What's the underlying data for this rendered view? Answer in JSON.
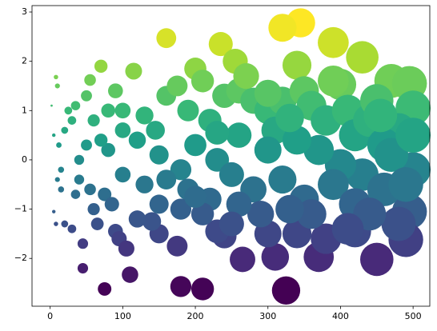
{
  "chart_data": {
    "type": "scatter",
    "colormap": "viridis",
    "color_by": "y",
    "size_by": "x",
    "x": [
      325,
      345,
      320,
      390,
      430,
      160,
      235,
      180,
      210,
      75,
      110,
      450,
      265,
      310,
      370,
      175,
      45,
      5,
      2,
      8,
      10,
      55,
      70,
      115,
      200,
      255,
      340,
      400,
      470,
      495,
      500,
      480,
      500,
      495,
      490,
      420,
      380,
      340,
      300,
      240,
      230,
      150,
      140,
      120,
      90,
      95,
      105,
      60,
      55,
      40,
      35,
      30,
      20,
      15,
      15,
      12,
      20,
      30,
      25,
      35,
      80,
      90,
      100,
      130,
      160,
      190,
      210,
      220,
      240,
      260,
      280,
      300,
      310,
      320,
      350,
      360,
      380,
      410,
      420,
      440,
      460,
      450,
      470,
      430,
      400,
      370,
      340,
      300,
      260,
      230,
      200,
      180,
      150,
      120,
      100,
      80,
      70,
      60,
      50,
      40,
      130,
      160,
      190,
      220,
      250,
      280,
      320,
      350,
      390,
      420,
      460,
      480,
      440,
      410,
      360,
      330,
      290,
      260,
      210,
      180,
      100,
      75,
      65,
      85,
      200,
      270,
      300,
      175,
      145,
      230,
      330,
      390,
      455,
      500,
      490,
      250,
      150,
      50,
      10,
      5,
      8,
      45
    ],
    "y": [
      -2.65,
      2.78,
      2.68,
      2.38,
      2.08,
      2.47,
      2.35,
      -2.57,
      -2.62,
      -2.62,
      -2.33,
      -2.02,
      -2.02,
      -1.97,
      -1.97,
      -1.75,
      -2.2,
      -1.05,
      1.1,
      1.68,
      1.5,
      1.62,
      1.9,
      1.8,
      1.85,
      2.0,
      1.92,
      1.53,
      1.6,
      1.55,
      1.05,
      0.6,
      -0.2,
      -1.05,
      -1.62,
      -1.45,
      -1.6,
      -1.5,
      -1.5,
      -1.55,
      -1.45,
      -1.5,
      -1.25,
      -1.2,
      -1.45,
      -1.6,
      -1.8,
      -1.0,
      -0.6,
      -0.4,
      -0.7,
      -1.4,
      -1.3,
      -0.6,
      -0.2,
      0.3,
      0.6,
      0.8,
      1.0,
      1.1,
      1.0,
      1.4,
      1.0,
      0.9,
      1.3,
      1.0,
      1.6,
      0.8,
      1.3,
      1.4,
      1.2,
      1.0,
      0.6,
      1.2,
      1.4,
      1.1,
      0.8,
      1.0,
      0.5,
      0.8,
      0.3,
      1.2,
      0.1,
      -0.3,
      -0.1,
      0.2,
      0.4,
      0.2,
      0.5,
      0.0,
      0.3,
      -0.2,
      0.1,
      0.4,
      0.6,
      0.2,
      0.4,
      0.8,
      0.3,
      0.0,
      -0.5,
      -0.4,
      -0.6,
      -0.8,
      -0.3,
      -0.6,
      -0.4,
      -0.8,
      -0.5,
      -0.9,
      -0.6,
      -1.3,
      -1.1,
      -1.4,
      -1.1,
      -1.0,
      -1.1,
      -0.9,
      -1.1,
      -1.0,
      -0.3,
      -0.7,
      -1.3,
      -0.9,
      -0.75,
      1.7,
      1.35,
      1.5,
      0.6,
      0.55,
      0.85,
      1.6,
      0.9,
      0.5,
      -0.5,
      -1.3,
      -0.9,
      1.3,
      -0.4,
      0.5,
      -1.3,
      -1.7
    ],
    "xlim": [
      -25,
      523
    ],
    "ylim": [
      -2.97,
      3.13
    ],
    "xticks": [
      0,
      100,
      200,
      300,
      400,
      500
    ],
    "yticks": [
      {
        "value": -2,
        "label": "−2"
      },
      {
        "value": -1,
        "label": "−1"
      },
      0,
      1,
      2,
      3
    ]
  }
}
